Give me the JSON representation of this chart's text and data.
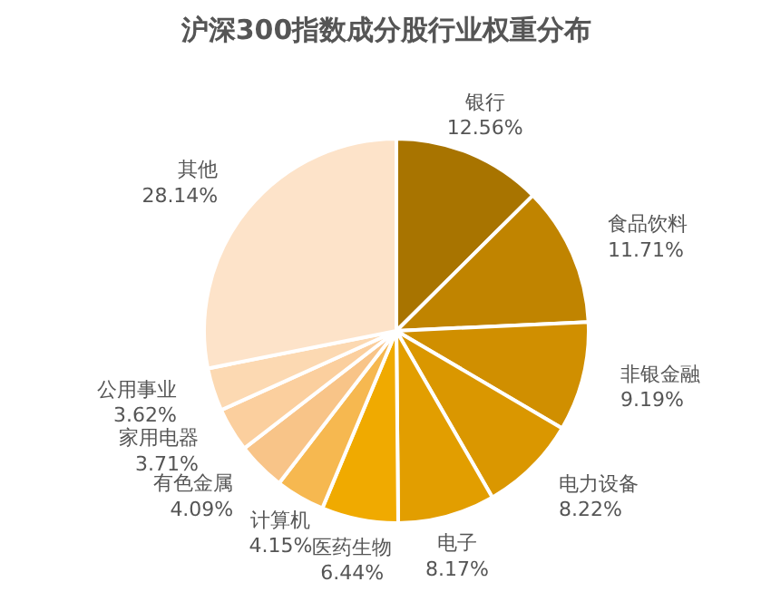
{
  "chart_data": {
    "type": "pie",
    "title": "沪深300指数成分股行业权重分布",
    "categories": [
      "银行",
      "食品饮料",
      "非银金融",
      "电力设备",
      "电子",
      "医药生物",
      "计算机",
      "有色金属",
      "家用电器",
      "公用事业",
      "其他"
    ],
    "values": [
      12.56,
      11.71,
      9.19,
      8.22,
      8.17,
      6.44,
      4.15,
      4.09,
      3.71,
      3.62,
      28.14
    ],
    "value_labels": [
      "12.56%",
      "11.71%",
      "9.19%",
      "8.22%",
      "8.17%",
      "6.44%",
      "4.15%",
      "4.09%",
      "3.71%",
      "3.62%",
      "28.14%"
    ],
    "colors": [
      "#a87400",
      "#c08400",
      "#d08f00",
      "#da9700",
      "#e29e00",
      "#f0aa00",
      "#f6b850",
      "#f8c488",
      "#fbcf9e",
      "#fcd9b2",
      "#fde3c9"
    ]
  }
}
